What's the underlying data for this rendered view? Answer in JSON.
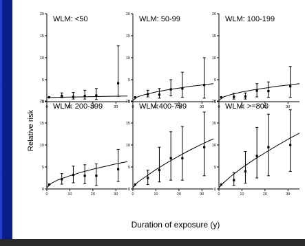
{
  "chart_data": {
    "type": "scatter",
    "ylabel": "Relative risk",
    "xlabel": "Duration of exposure (y)",
    "xlim": [
      0,
      35
    ],
    "ylim": [
      0,
      20
    ],
    "x_ticks": [
      0,
      10,
      20,
      30
    ],
    "y_ticks": [
      0,
      5,
      10,
      15,
      20
    ],
    "error_bars": true,
    "grid": false,
    "panels": [
      {
        "title": "WLM: <50",
        "points": [
          {
            "x": 1,
            "y": 1.0,
            "lo": 1.0,
            "hi": 1.0
          },
          {
            "x": 6.5,
            "y": 1.3,
            "lo": 0.9,
            "hi": 2.0
          },
          {
            "x": 11.5,
            "y": 1.1,
            "lo": 0.6,
            "hi": 2.1
          },
          {
            "x": 16.5,
            "y": 1.3,
            "lo": 0.6,
            "hi": 2.6
          },
          {
            "x": 21.5,
            "y": 1.4,
            "lo": 0.5,
            "hi": 3.0
          },
          {
            "x": 31,
            "y": 4.2,
            "lo": 1.2,
            "hi": 12.7
          }
        ],
        "fit": [
          [
            0,
            0.95
          ],
          [
            5,
            1.0
          ],
          [
            10,
            1.05
          ],
          [
            15,
            1.1
          ],
          [
            20,
            1.15
          ],
          [
            25,
            1.2
          ],
          [
            30,
            1.25
          ],
          [
            35,
            1.3
          ]
        ]
      },
      {
        "title": "WLM: 50-99",
        "points": [
          {
            "x": 1,
            "y": 1.0,
            "lo": 1.0,
            "hi": 1.0
          },
          {
            "x": 6.5,
            "y": 1.7,
            "lo": 1.1,
            "hi": 2.6
          },
          {
            "x": 11.5,
            "y": 1.6,
            "lo": 0.8,
            "hi": 3.0
          },
          {
            "x": 16.5,
            "y": 2.8,
            "lo": 1.3,
            "hi": 5.0
          },
          {
            "x": 21.5,
            "y": 3.0,
            "lo": 1.0,
            "hi": 6.7
          },
          {
            "x": 31,
            "y": 3.8,
            "lo": 0.8,
            "hi": 10.0
          }
        ],
        "fit": [
          [
            0,
            0.3
          ],
          [
            2,
            1.1
          ],
          [
            5,
            1.6
          ],
          [
            10,
            2.2
          ],
          [
            15,
            2.7
          ],
          [
            20,
            3.1
          ],
          [
            25,
            3.5
          ],
          [
            30,
            3.8
          ],
          [
            35,
            4.1
          ]
        ]
      },
      {
        "title": "WLM: 100-199",
        "points": [
          {
            "x": 1,
            "y": 1.0,
            "lo": 1.0,
            "hi": 1.0
          },
          {
            "x": 6.5,
            "y": 1.1,
            "lo": 0.6,
            "hi": 1.9
          },
          {
            "x": 11.5,
            "y": 1.2,
            "lo": 0.6,
            "hi": 2.0
          },
          {
            "x": 16.5,
            "y": 2.5,
            "lo": 1.1,
            "hi": 4.1
          },
          {
            "x": 21.5,
            "y": 2.4,
            "lo": 1.0,
            "hi": 4.5
          },
          {
            "x": 31,
            "y": 3.5,
            "lo": 1.0,
            "hi": 8.0
          }
        ],
        "fit": [
          [
            0,
            0.3
          ],
          [
            2,
            1.1
          ],
          [
            5,
            1.6
          ],
          [
            10,
            2.2
          ],
          [
            15,
            2.7
          ],
          [
            20,
            3.1
          ],
          [
            25,
            3.5
          ],
          [
            30,
            3.8
          ],
          [
            35,
            4.1
          ]
        ]
      },
      {
        "title": "WLM: 200-399",
        "points": [
          {
            "x": 1,
            "y": 1.0,
            "lo": 1.0,
            "hi": 1.0
          },
          {
            "x": 6.5,
            "y": 2.2,
            "lo": 1.1,
            "hi": 3.5
          },
          {
            "x": 11.5,
            "y": 3.2,
            "lo": 1.4,
            "hi": 5.2
          },
          {
            "x": 16.5,
            "y": 3.0,
            "lo": 1.2,
            "hi": 5.5
          },
          {
            "x": 21.5,
            "y": 3.0,
            "lo": 0.8,
            "hi": 5.7
          },
          {
            "x": 31,
            "y": 4.5,
            "lo": 1.7,
            "hi": 9.0
          }
        ],
        "fit": [
          [
            0,
            0.3
          ],
          [
            2,
            1.3
          ],
          [
            5,
            2.1
          ],
          [
            10,
            3.0
          ],
          [
            15,
            3.8
          ],
          [
            20,
            4.5
          ],
          [
            25,
            5.1
          ],
          [
            30,
            5.7
          ],
          [
            35,
            6.2
          ]
        ]
      },
      {
        "title": "WLM:400-799",
        "points": [
          {
            "x": 1,
            "y": 1.0,
            "lo": 1.0,
            "hi": 1.0
          },
          {
            "x": 6.5,
            "y": 2.5,
            "lo": 1.0,
            "hi": 4.3
          },
          {
            "x": 11.5,
            "y": 4.3,
            "lo": 1.6,
            "hi": 9.5
          },
          {
            "x": 16.5,
            "y": 7.0,
            "lo": 2.0,
            "hi": 13.0
          },
          {
            "x": 21.5,
            "y": 7.0,
            "lo": 2.0,
            "hi": 14.2
          },
          {
            "x": 31,
            "y": 9.5,
            "lo": 3.0,
            "hi": 17.5
          }
        ],
        "fit": [
          [
            0,
            0.3
          ],
          [
            2,
            1.5
          ],
          [
            5,
            2.6
          ],
          [
            10,
            4.4
          ],
          [
            15,
            6.0
          ],
          [
            20,
            7.5
          ],
          [
            25,
            8.9
          ],
          [
            30,
            10.2
          ],
          [
            35,
            11.4
          ]
        ]
      },
      {
        "title": "WLM: >=800",
        "points": [
          {
            "x": 1,
            "y": 1.0,
            "lo": 1.0,
            "hi": 1.0
          },
          {
            "x": 6.5,
            "y": 2.0,
            "lo": 0.8,
            "hi": 3.7
          },
          {
            "x": 11.5,
            "y": 4.0,
            "lo": 1.3,
            "hi": 8.5
          },
          {
            "x": 16.5,
            "y": 7.5,
            "lo": 2.5,
            "hi": 14.0
          },
          {
            "x": 21.5,
            "y": 9.5,
            "lo": 3.0,
            "hi": 17.0
          },
          {
            "x": 31,
            "y": 10.0,
            "lo": 4.0,
            "hi": 18.0
          }
        ],
        "fit": [
          [
            0,
            0.3
          ],
          [
            2,
            1.4
          ],
          [
            5,
            2.8
          ],
          [
            10,
            4.8
          ],
          [
            15,
            6.6
          ],
          [
            20,
            8.2
          ],
          [
            25,
            9.8
          ],
          [
            30,
            11.3
          ],
          [
            35,
            12.7
          ]
        ]
      }
    ]
  }
}
